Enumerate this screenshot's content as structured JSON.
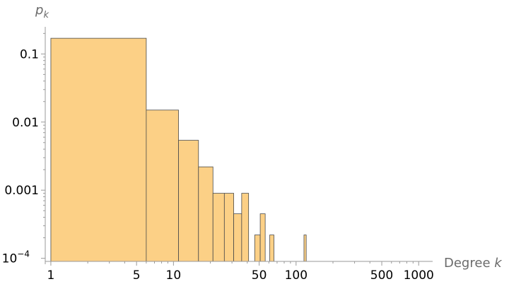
{
  "chart_data": {
    "type": "histogram",
    "xlabel": {
      "text": "Degree ",
      "var": "k"
    },
    "ylabel": {
      "base": "p",
      "sub": "k"
    },
    "x_scale": "log",
    "y_scale": "log",
    "xlim": [
      0.9,
      1300
    ],
    "ylim": [
      9e-05,
      0.25
    ],
    "x_ticks": [
      {
        "value": 1,
        "label": "1"
      },
      {
        "value": 5,
        "label": "5"
      },
      {
        "value": 10,
        "label": "10"
      },
      {
        "value": 50,
        "label": "50"
      },
      {
        "value": 100,
        "label": "100"
      },
      {
        "value": 500,
        "label": "500"
      },
      {
        "value": 1000,
        "label": "1000"
      }
    ],
    "y_ticks": [
      {
        "value": 0.1,
        "label": "0.1"
      },
      {
        "value": 0.01,
        "label": "0.01"
      },
      {
        "value": 0.001,
        "label": "0.001"
      },
      {
        "value": 0.0001,
        "label": "10",
        "exp": "−4"
      }
    ],
    "bins": [
      {
        "x0": 1,
        "x1": 6,
        "value": 0.17
      },
      {
        "x0": 6,
        "x1": 11,
        "value": 0.015
      },
      {
        "x0": 11,
        "x1": 16,
        "value": 0.0054
      },
      {
        "x0": 16,
        "x1": 21,
        "value": 0.0022
      },
      {
        "x0": 21,
        "x1": 26,
        "value": 0.0009
      },
      {
        "x0": 26,
        "x1": 31,
        "value": 0.0009
      },
      {
        "x0": 31,
        "x1": 36,
        "value": 0.00045
      },
      {
        "x0": 36,
        "x1": 41,
        "value": 0.0009
      },
      {
        "x0": 46,
        "x1": 51,
        "value": 0.00022
      },
      {
        "x0": 51,
        "x1": 56,
        "value": 0.00045
      },
      {
        "x0": 61,
        "x1": 66,
        "value": 0.00022
      },
      {
        "x0": 116,
        "x1": 121,
        "value": 0.00022
      }
    ],
    "bar_fill": "#fcd086",
    "bar_stroke": "#4a4a4a",
    "grid": false,
    "legend": "none"
  }
}
